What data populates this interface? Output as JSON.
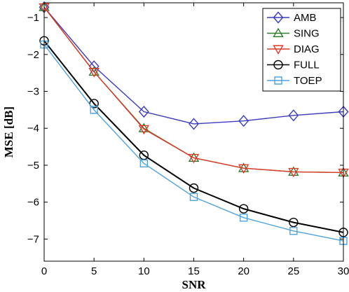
{
  "chart_data": {
    "type": "line",
    "title": "",
    "xlabel": "SNR",
    "ylabel": "MSE [dB]",
    "x": [
      0,
      5,
      10,
      15,
      20,
      25,
      30
    ],
    "xlim": [
      0,
      30
    ],
    "ylim": [
      -7.6,
      -0.6
    ],
    "xticks": [
      "0",
      "5",
      "10",
      "15",
      "20",
      "25",
      "30"
    ],
    "yticks": [
      "-1",
      "-2",
      "-3",
      "-4",
      "-5",
      "-6",
      "-7"
    ],
    "grid": false,
    "legend_position": "top-right",
    "series": [
      {
        "name": "AMB",
        "color": "#3c3cbe",
        "marker": "diamond",
        "values": [
          -0.72,
          -2.32,
          -3.55,
          -3.88,
          -3.8,
          -3.65,
          -3.55
        ]
      },
      {
        "name": "SING",
        "color": "#2e7d2e",
        "marker": "triangle-up",
        "values": [
          -0.72,
          -2.47,
          -4.0,
          -4.8,
          -5.08,
          -5.18,
          -5.2
        ]
      },
      {
        "name": "DIAG",
        "color": "#e03a2a",
        "marker": "triangle-down",
        "values": [
          -0.72,
          -2.47,
          -4.02,
          -4.8,
          -5.08,
          -5.18,
          -5.2
        ]
      },
      {
        "name": "FULL",
        "color": "#000000",
        "marker": "circle",
        "values": [
          -1.63,
          -3.33,
          -4.73,
          -5.62,
          -6.18,
          -6.55,
          -6.82
        ]
      },
      {
        "name": "TOEP",
        "color": "#4fa3e0",
        "marker": "square",
        "values": [
          -1.73,
          -3.5,
          -4.95,
          -5.86,
          -6.42,
          -6.78,
          -7.05
        ]
      }
    ]
  }
}
